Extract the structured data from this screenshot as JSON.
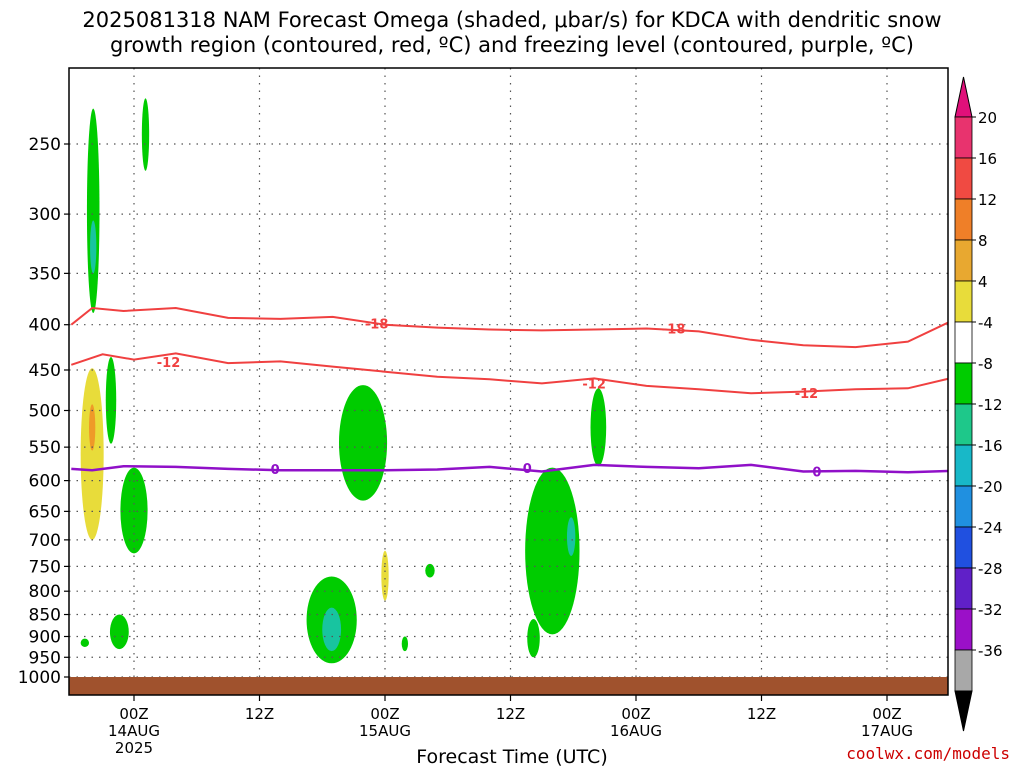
{
  "title_line1": "2025081318 NAM Forecast Omega (shaded, μbar/s) for KDCA with dendritic snow",
  "title_line2": "growth region (contoured, red, ºC) and freezing level (contoured, purple, ºC)",
  "credit": "coolwx.com/models",
  "chart_data": {
    "type": "heatmap",
    "xlabel": "Forecast Time (UTC)",
    "ylabel": "",
    "x_range_hours_from_2025081318": [
      0,
      84
    ],
    "y_scale": "log-pressure",
    "y_ticks": [
      250,
      300,
      350,
      400,
      450,
      500,
      550,
      600,
      650,
      700,
      750,
      800,
      850,
      900,
      950,
      1000
    ],
    "x_ticks": [
      {
        "hour": 6,
        "label": "00Z",
        "date": "14AUG",
        "year": "2025"
      },
      {
        "hour": 18,
        "label": "12Z",
        "date": "",
        "year": ""
      },
      {
        "hour": 30,
        "label": "00Z",
        "date": "15AUG",
        "year": ""
      },
      {
        "hour": 42,
        "label": "12Z",
        "date": "",
        "year": ""
      },
      {
        "hour": 54,
        "label": "00Z",
        "date": "16AUG",
        "year": ""
      },
      {
        "hour": 66,
        "label": "12Z",
        "date": "",
        "year": ""
      },
      {
        "hour": 78,
        "label": "00Z",
        "date": "17AUG",
        "year": ""
      }
    ],
    "grid": true,
    "colorbar": {
      "labels": [
        "20",
        "16",
        "12",
        "8",
        "4",
        "-4",
        "-8",
        "-12",
        "-16",
        "-20",
        "-24",
        "-28",
        "-32",
        "-36"
      ],
      "colors": [
        "#e8336e",
        "#f04a42",
        "#ef7f28",
        "#e8a830",
        "#e8dc3a",
        "#ffffff",
        "#00cc00",
        "#1ec88a",
        "#18b8c8",
        "#2090e0",
        "#2050e0",
        "#6020c8",
        "#9b10c8",
        "#a8a8a8"
      ],
      "lower_color": "#000000",
      "upper_color": "#e0107a"
    },
    "contour_labels": {
      "minus18": "-18",
      "minus12": "-12",
      "zero": "0"
    },
    "contours": {
      "minus18_pressure_hPa": [
        [
          0,
          400
        ],
        [
          2,
          383
        ],
        [
          5,
          386
        ],
        [
          10,
          383
        ],
        [
          15,
          393
        ],
        [
          20,
          394
        ],
        [
          25,
          392
        ],
        [
          30,
          400
        ],
        [
          35,
          403
        ],
        [
          40,
          405
        ],
        [
          45,
          406
        ],
        [
          50,
          405
        ],
        [
          55,
          404
        ],
        [
          60,
          407
        ],
        [
          65,
          416
        ],
        [
          70,
          422
        ],
        [
          75,
          424
        ],
        [
          80,
          418
        ],
        [
          84,
          397
        ]
      ],
      "minus12_pressure_hPa": [
        [
          0,
          444
        ],
        [
          3,
          432
        ],
        [
          6,
          438
        ],
        [
          10,
          431
        ],
        [
          15,
          442
        ],
        [
          20,
          440
        ],
        [
          25,
          446
        ],
        [
          30,
          452
        ],
        [
          35,
          458
        ],
        [
          40,
          461
        ],
        [
          45,
          466
        ],
        [
          50,
          460
        ],
        [
          55,
          469
        ],
        [
          60,
          473
        ],
        [
          65,
          478
        ],
        [
          70,
          476
        ],
        [
          75,
          473
        ],
        [
          80,
          472
        ],
        [
          84,
          460
        ]
      ],
      "freezing_pressure_hPa": [
        [
          0,
          582
        ],
        [
          2,
          584
        ],
        [
          5,
          578
        ],
        [
          10,
          579
        ],
        [
          15,
          582
        ],
        [
          20,
          584
        ],
        [
          25,
          584
        ],
        [
          30,
          584
        ],
        [
          35,
          583
        ],
        [
          40,
          579
        ],
        [
          45,
          586
        ],
        [
          50,
          576
        ],
        [
          55,
          579
        ],
        [
          60,
          581
        ],
        [
          65,
          576
        ],
        [
          70,
          586
        ],
        [
          75,
          585
        ],
        [
          80,
          587
        ],
        [
          84,
          585
        ]
      ]
    },
    "terrain_color": "#a0522d"
  }
}
